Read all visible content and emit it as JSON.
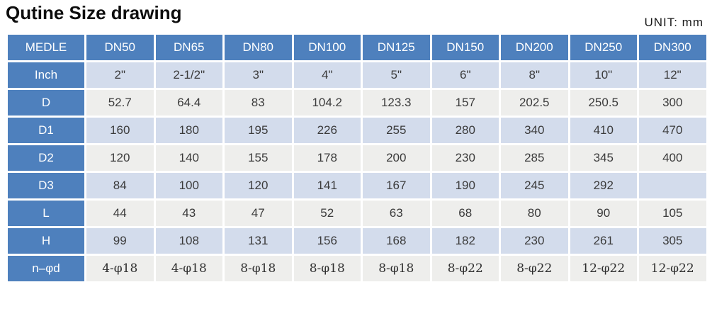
{
  "page": {
    "title": "Qutine Size drawing",
    "unit_label": "UNIT: mm"
  },
  "colors": {
    "header_blue": "#4e80bd",
    "row_light_blue": "#d3dcec",
    "row_light_gray": "#eeeeec",
    "header_text": "#ffffff",
    "data_text": "#3b3b3b"
  },
  "table": {
    "header": [
      "MEDLE",
      "DN50",
      "DN65",
      "DN80",
      "DN100",
      "DN125",
      "DN150",
      "DN200",
      "DN250",
      "DN300"
    ],
    "rows": [
      {
        "label": "Inch",
        "values": [
          "2\"",
          "2-1/2\"",
          "3\"",
          "4\"",
          "5\"",
          "6\"",
          "8\"",
          "10\"",
          "12\""
        ]
      },
      {
        "label": "D",
        "values": [
          "52.7",
          "64.4",
          "83",
          "104.2",
          "123.3",
          "157",
          "202.5",
          "250.5",
          "300"
        ]
      },
      {
        "label": "D1",
        "values": [
          "160",
          "180",
          "195",
          "226",
          "255",
          "280",
          "340",
          "410",
          "470"
        ]
      },
      {
        "label": "D2",
        "values": [
          "120",
          "140",
          "155",
          "178",
          "200",
          "230",
          "285",
          "345",
          "400"
        ]
      },
      {
        "label": "D3",
        "values": [
          "84",
          "100",
          "120",
          "141",
          "167",
          "190",
          "245",
          "292",
          ""
        ]
      },
      {
        "label": "L",
        "values": [
          "44",
          "43",
          "47",
          "52",
          "63",
          "68",
          "80",
          "90",
          "105"
        ]
      },
      {
        "label": "H",
        "values": [
          "99",
          "108",
          "131",
          "156",
          "168",
          "182",
          "230",
          "261",
          "305"
        ]
      },
      {
        "label": "n–φd",
        "values": [
          "4-φ18",
          "4-φ18",
          "8-φ18",
          "8-φ18",
          "8-φ18",
          "8-φ22",
          "8-φ22",
          "12-φ22",
          "12-φ22"
        ]
      }
    ]
  },
  "chart_data": {
    "type": "table",
    "title": "Qutine Size drawing",
    "unit": "mm",
    "columns": [
      "MEDLE",
      "DN50",
      "DN65",
      "DN80",
      "DN100",
      "DN125",
      "DN150",
      "DN200",
      "DN250",
      "DN300"
    ],
    "rows": [
      [
        "Inch",
        "2\"",
        "2-1/2\"",
        "3\"",
        "4\"",
        "5\"",
        "6\"",
        "8\"",
        "10\"",
        "12\""
      ],
      [
        "D",
        52.7,
        64.4,
        83,
        104.2,
        123.3,
        157,
        202.5,
        250.5,
        300
      ],
      [
        "D1",
        160,
        180,
        195,
        226,
        255,
        280,
        340,
        410,
        470
      ],
      [
        "D2",
        120,
        140,
        155,
        178,
        200,
        230,
        285,
        345,
        400
      ],
      [
        "D3",
        84,
        100,
        120,
        141,
        167,
        190,
        245,
        292,
        null
      ],
      [
        "L",
        44,
        43,
        47,
        52,
        63,
        68,
        80,
        90,
        105
      ],
      [
        "H",
        99,
        108,
        131,
        156,
        168,
        182,
        230,
        261,
        305
      ],
      [
        "n-φd",
        "4-φ18",
        "4-φ18",
        "8-φ18",
        "8-φ18",
        "8-φ18",
        "8-φ22",
        "8-φ22",
        "12-φ22",
        "12-φ22"
      ]
    ]
  }
}
